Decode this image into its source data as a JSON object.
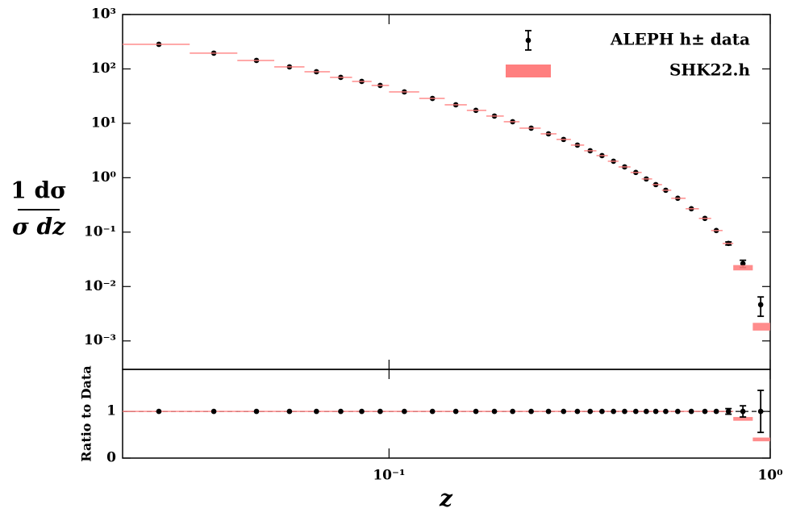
{
  "chart_data": [
    {
      "type": "errorbar",
      "ylog": true,
      "xlog": true,
      "ylabel_numerator": "1 dσ",
      "ylabel_denominator": "σ dz",
      "xlim": [
        0.02,
        1
      ],
      "xticks": [
        0.1,
        1
      ],
      "ylim": [
        0.0003,
        1000
      ],
      "yticks": [
        {
          "value": 1000,
          "label": "10³"
        },
        {
          "value": 100,
          "label": "10²"
        },
        {
          "value": 10,
          "label": "10¹"
        },
        {
          "value": 1,
          "label": "10⁰"
        },
        {
          "value": 0.1,
          "label": "10⁻¹"
        },
        {
          "value": 0.01,
          "label": "10⁻²"
        },
        {
          "value": 0.001,
          "label": "10⁻³"
        }
      ],
      "legend": "upper right",
      "bins": [
        0.02,
        0.03,
        0.04,
        0.05,
        0.06,
        0.07,
        0.08,
        0.09,
        0.1,
        0.12,
        0.14,
        0.16,
        0.18,
        0.2,
        0.22,
        0.25,
        0.275,
        0.3,
        0.325,
        0.35,
        0.375,
        0.4,
        0.43,
        0.46,
        0.49,
        0.52,
        0.55,
        0.6,
        0.65,
        0.7,
        0.75,
        0.8,
        0.9,
        1
      ],
      "x": [
        0.0249,
        0.0347,
        0.0449,
        0.0548,
        0.0645,
        0.0747,
        0.0848,
        0.0948,
        0.1097,
        0.13,
        0.1497,
        0.169,
        0.189,
        0.211,
        0.236,
        0.262,
        0.287,
        0.312,
        0.337,
        0.362,
        0.388,
        0.415,
        0.444,
        0.473,
        0.501,
        0.532,
        0.572,
        0.621,
        0.674,
        0.722,
        0.777,
        0.848,
        0.944
      ],
      "series": [
        {
          "name": "ALEPH h± data",
          "style": "points",
          "color": "#000000",
          "values": [
            283,
            195,
            143,
            109,
            88.7,
            69.9,
            58.9,
            49.7,
            37.8,
            28.7,
            21.9,
            17.3,
            13.6,
            10.7,
            8.15,
            6.41,
            5.06,
            3.98,
            3.13,
            2.55,
            2.01,
            1.58,
            1.25,
            0.95,
            0.748,
            0.589,
            0.419,
            0.269,
            0.179,
            0.107,
            0.062,
            0.0264,
            0.00464
          ],
          "errors": [
            0,
            0,
            0,
            0,
            0,
            0,
            0,
            0,
            0,
            0,
            0,
            0,
            0,
            0,
            0,
            0,
            0,
            0,
            0,
            0,
            0,
            0,
            0,
            0,
            0,
            0,
            0,
            0,
            0,
            0,
            0.004,
            0.004,
            0.0018
          ]
        },
        {
          "name": "SHK22.h",
          "style": "band",
          "color": "#ff7f7f",
          "values": [
            283,
            195,
            143,
            109,
            88.7,
            69.9,
            58.9,
            49.7,
            37.8,
            28.7,
            21.9,
            17.3,
            13.6,
            10.7,
            8.15,
            6.41,
            5.06,
            3.98,
            3.13,
            2.55,
            2.01,
            1.58,
            1.25,
            0.95,
            0.748,
            0.589,
            0.419,
            0.269,
            0.179,
            0.107,
            0.062,
            0.0223,
            0.00185
          ],
          "errors": [
            0,
            0,
            0,
            0,
            0,
            0,
            0,
            0,
            0,
            0,
            0,
            0,
            0,
            0,
            0,
            0,
            0,
            0,
            0,
            0,
            0,
            0,
            0,
            0,
            0,
            0,
            0,
            0,
            0,
            0,
            0,
            0.0025,
            0.0003
          ]
        }
      ]
    },
    {
      "type": "errorbar",
      "ylog": false,
      "xlog": true,
      "ylabel": "Ratio to Data",
      "xlabel": "z",
      "xlim": [
        0.02,
        1
      ],
      "xticks": [
        {
          "value": 0.1,
          "label": "10⁻¹"
        },
        {
          "value": 1,
          "label": "10⁰"
        }
      ],
      "ylim": [
        0,
        1.9
      ],
      "yticks": [
        0,
        1
      ],
      "reference": 1,
      "bins": [
        0.02,
        0.03,
        0.04,
        0.05,
        0.06,
        0.07,
        0.08,
        0.09,
        0.1,
        0.12,
        0.14,
        0.16,
        0.18,
        0.2,
        0.22,
        0.25,
        0.275,
        0.3,
        0.325,
        0.35,
        0.375,
        0.4,
        0.43,
        0.46,
        0.49,
        0.52,
        0.55,
        0.6,
        0.65,
        0.7,
        0.75,
        0.8,
        0.9,
        1
      ],
      "x": [
        0.0249,
        0.0347,
        0.0449,
        0.0548,
        0.0645,
        0.0747,
        0.0848,
        0.0948,
        0.1097,
        0.13,
        0.1497,
        0.169,
        0.189,
        0.211,
        0.236,
        0.262,
        0.287,
        0.312,
        0.337,
        0.362,
        0.388,
        0.415,
        0.444,
        0.473,
        0.501,
        0.532,
        0.572,
        0.621,
        0.674,
        0.722,
        0.777,
        0.848,
        0.944
      ],
      "series": [
        {
          "style": "band",
          "color": "#ff7f7f",
          "values": [
            1,
            1,
            1,
            1,
            1,
            1,
            1,
            1,
            1,
            1,
            1,
            1,
            1,
            1,
            1,
            1,
            1,
            1,
            1,
            1,
            1,
            1,
            1,
            1,
            1,
            1,
            1,
            1,
            1,
            1,
            1,
            0.84,
            0.4
          ],
          "errors": [
            0,
            0,
            0,
            0,
            0,
            0,
            0,
            0,
            0,
            0,
            0,
            0,
            0,
            0,
            0,
            0,
            0,
            0,
            0,
            0,
            0,
            0,
            0,
            0,
            0,
            0,
            0,
            0,
            0,
            0,
            0,
            0.04,
            0.04
          ]
        },
        {
          "style": "points",
          "color": "#000000",
          "values": [
            1,
            1,
            1,
            1,
            1,
            1,
            1,
            1,
            1,
            1,
            1,
            1,
            1,
            1,
            1,
            1,
            1,
            1,
            1,
            1,
            1,
            1,
            1,
            1,
            1,
            1,
            1,
            1,
            1,
            1,
            1,
            1,
            1
          ],
          "errors": [
            0,
            0,
            0,
            0,
            0,
            0,
            0,
            0,
            0,
            0,
            0,
            0,
            0,
            0,
            0,
            0,
            0,
            0,
            0,
            0,
            0,
            0,
            0,
            0,
            0,
            0,
            0,
            0,
            0,
            0,
            0.06,
            0.12,
            0.45
          ]
        }
      ]
    }
  ]
}
